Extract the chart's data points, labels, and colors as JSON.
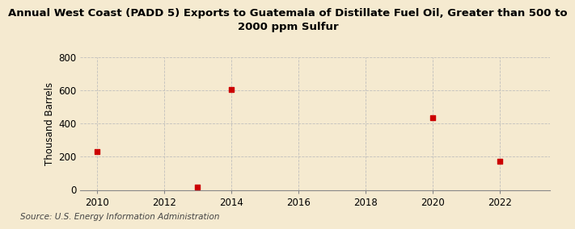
{
  "title_line1": "Annual West Coast (PADD 5) Exports to Guatemala of Distillate Fuel Oil, Greater than 500 to",
  "title_line2": "2000 ppm Sulfur",
  "ylabel": "Thousand Barrels",
  "source": "Source: U.S. Energy Information Administration",
  "background_color": "#f5ead0",
  "plot_bg_color": "#f5ead0",
  "data_x": [
    2010,
    2013,
    2014,
    2020,
    2022
  ],
  "data_y": [
    231,
    15,
    605,
    435,
    170
  ],
  "marker_color": "#cc0000",
  "marker_size": 5,
  "xlim": [
    2009.5,
    2023.5
  ],
  "ylim": [
    0,
    800
  ],
  "yticks": [
    0,
    200,
    400,
    600,
    800
  ],
  "xticks": [
    2010,
    2012,
    2014,
    2016,
    2018,
    2020,
    2022
  ],
  "grid_color": "#bbbbbb",
  "grid_style": "--",
  "title_fontsize": 9.5,
  "axis_fontsize": 8.5,
  "source_fontsize": 7.5
}
